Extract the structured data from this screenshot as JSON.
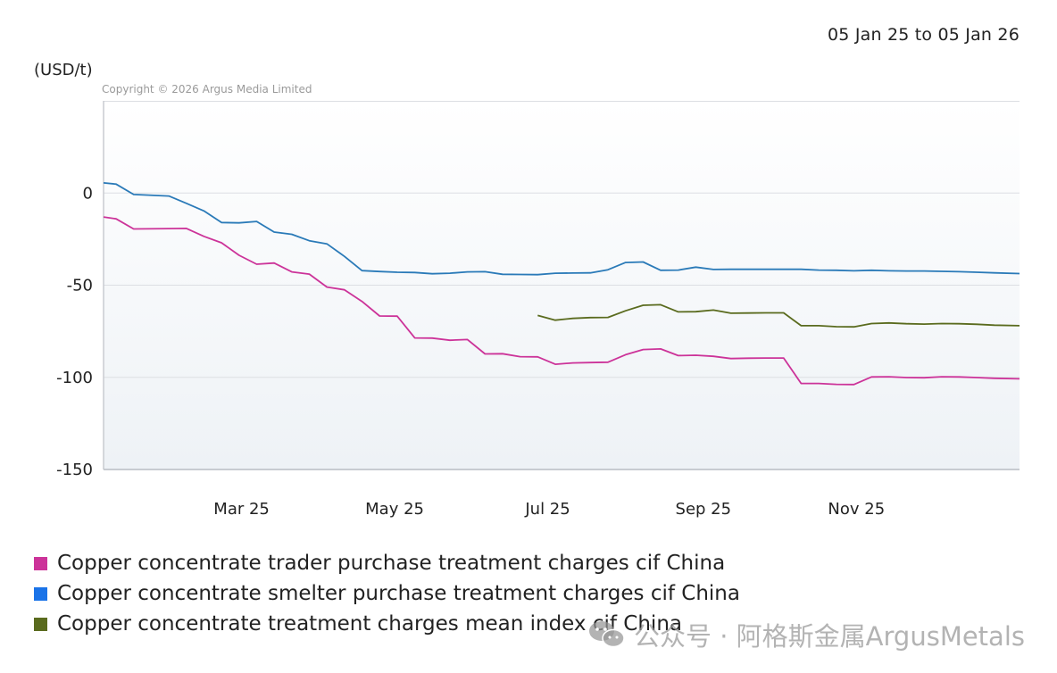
{
  "date_range": "05 Jan 25 to 05 Jan 26",
  "unit": "(USD/t)",
  "copyright": "Copyright © 2026 Argus Media Limited",
  "watermark": {
    "text": "公众号 · 阿格斯金属ArgusMetals",
    "icon": "wechat-icon"
  },
  "colors": {
    "trader": "#cc3399",
    "smelter": "#2a7ab8",
    "mean": "#5a6b1e",
    "legend_smelter": "#1a73e8",
    "grid": "#dcdfe3",
    "plot_bg_top": "#ffffff",
    "plot_bg_bottom": "#eef2f6"
  },
  "chart_data": {
    "type": "line",
    "title": "",
    "xlabel": "",
    "ylabel": "(USD/t)",
    "x_range": [
      "2025-01-05",
      "2026-01-05"
    ],
    "ylim": [
      -150,
      50
    ],
    "y_ticks": [
      0,
      -50,
      -100,
      -150
    ],
    "y_tick_labels": [
      "0",
      "-50",
      "-100",
      "-150"
    ],
    "x_ticks": [
      "2025-03-01",
      "2025-05-01",
      "2025-07-01",
      "2025-09-01",
      "2025-11-01"
    ],
    "x_tick_labels": [
      "Mar 25",
      "May 25",
      "Jul 25",
      "Sep 25",
      "Nov 25"
    ],
    "grid": true,
    "legend_position": "bottom",
    "series": [
      {
        "key": "trader",
        "name": "Copper concentrate trader purchase treatment charges cif China",
        "x": [
          "2025-01-05",
          "2025-01-10",
          "2025-01-17",
          "2025-01-31",
          "2025-02-07",
          "2025-02-14",
          "2025-02-21",
          "2025-02-28",
          "2025-03-07",
          "2025-03-14",
          "2025-03-21",
          "2025-03-28",
          "2025-04-04",
          "2025-04-11",
          "2025-04-18",
          "2025-04-25",
          "2025-05-02",
          "2025-05-09",
          "2025-05-16",
          "2025-05-23",
          "2025-05-30",
          "2025-06-06",
          "2025-06-13",
          "2025-06-20",
          "2025-06-27",
          "2025-07-04",
          "2025-07-11",
          "2025-07-18",
          "2025-07-25",
          "2025-08-01",
          "2025-08-08",
          "2025-08-15",
          "2025-08-22",
          "2025-08-29",
          "2025-09-05",
          "2025-09-12",
          "2025-09-19",
          "2025-09-26",
          "2025-10-03",
          "2025-10-10",
          "2025-10-17",
          "2025-10-24",
          "2025-10-31",
          "2025-11-07",
          "2025-11-14",
          "2025-11-21",
          "2025-11-28",
          "2025-12-05",
          "2025-12-12",
          "2025-12-19",
          "2025-12-26",
          "2026-01-05"
        ],
        "y": [
          -13,
          -14,
          -19.5,
          -19.3,
          -19.2,
          -23.5,
          -27,
          -33.8,
          -38.6,
          -38,
          -42.8,
          -44,
          -51,
          -52.5,
          -58.8,
          -66.7,
          -66.8,
          -78.6,
          -78.7,
          -79.9,
          -79.5,
          -87.3,
          -87.2,
          -88.8,
          -88.9,
          -92.9,
          -92.2,
          -92,
          -91.8,
          -87.7,
          -84.9,
          -84.6,
          -88.2,
          -88,
          -88.6,
          -89.8,
          -89.6,
          -89.5,
          -89.5,
          -103.3,
          -103.3,
          -103.8,
          -103.9,
          -99.8,
          -99.7,
          -100.1,
          -100.2,
          -99.7,
          -99.8,
          -100.1,
          -100.5,
          -100.8
        ]
      },
      {
        "key": "smelter",
        "name": "Copper concentrate smelter purchase treatment charges cif China",
        "x": [
          "2025-01-05",
          "2025-01-10",
          "2025-01-17",
          "2025-01-31",
          "2025-02-07",
          "2025-02-14",
          "2025-02-21",
          "2025-02-28",
          "2025-03-07",
          "2025-03-14",
          "2025-03-21",
          "2025-03-28",
          "2025-04-04",
          "2025-04-11",
          "2025-04-18",
          "2025-04-25",
          "2025-05-02",
          "2025-05-09",
          "2025-05-16",
          "2025-05-23",
          "2025-05-30",
          "2025-06-06",
          "2025-06-13",
          "2025-06-20",
          "2025-06-27",
          "2025-07-04",
          "2025-07-11",
          "2025-07-18",
          "2025-07-25",
          "2025-08-01",
          "2025-08-08",
          "2025-08-15",
          "2025-08-22",
          "2025-08-29",
          "2025-09-05",
          "2025-09-12",
          "2025-09-19",
          "2025-09-26",
          "2025-10-03",
          "2025-10-10",
          "2025-10-17",
          "2025-10-24",
          "2025-10-31",
          "2025-11-07",
          "2025-11-14",
          "2025-11-21",
          "2025-11-28",
          "2025-12-05",
          "2025-12-12",
          "2025-12-19",
          "2025-12-26",
          "2026-01-05"
        ],
        "y": [
          5.5,
          4.8,
          -0.8,
          -1.6,
          -5.6,
          -9.7,
          -16,
          -16.2,
          -15.4,
          -21.2,
          -22.4,
          -25.9,
          -27.6,
          -34.4,
          -42.1,
          -42.6,
          -43,
          -43.1,
          -43.8,
          -43.5,
          -42.8,
          -42.7,
          -44.1,
          -44.2,
          -44.3,
          -43.5,
          -43.4,
          -43.3,
          -41.6,
          -37.7,
          -37.4,
          -41.9,
          -41.8,
          -40.2,
          -41.5,
          -41.4,
          -41.4,
          -41.4,
          -41.4,
          -41.4,
          -41.8,
          -41.9,
          -42.2,
          -41.9,
          -42.2,
          -42.3,
          -42.3,
          -42.5,
          -42.7,
          -43,
          -43.3,
          -43.7
        ]
      },
      {
        "key": "mean",
        "name": "Copper concentrate treatment charges mean index cif China",
        "x": [
          "2025-06-27",
          "2025-07-04",
          "2025-07-11",
          "2025-07-18",
          "2025-07-25",
          "2025-08-01",
          "2025-08-08",
          "2025-08-15",
          "2025-08-22",
          "2025-08-29",
          "2025-09-05",
          "2025-09-12",
          "2025-09-19",
          "2025-09-26",
          "2025-10-03",
          "2025-10-10",
          "2025-10-17",
          "2025-10-24",
          "2025-10-31",
          "2025-11-07",
          "2025-11-14",
          "2025-11-21",
          "2025-11-28",
          "2025-12-05",
          "2025-12-12",
          "2025-12-19",
          "2025-12-26",
          "2026-01-05"
        ],
        "y": [
          -66.4,
          -69,
          -68,
          -67.6,
          -67.5,
          -63.9,
          -60.9,
          -60.6,
          -64.5,
          -64.4,
          -63.5,
          -65.2,
          -65.1,
          -65,
          -65,
          -72,
          -72,
          -72.5,
          -72.6,
          -70.8,
          -70.5,
          -70.9,
          -71.1,
          -70.8,
          -70.9,
          -71.2,
          -71.7,
          -72
        ]
      }
    ]
  }
}
